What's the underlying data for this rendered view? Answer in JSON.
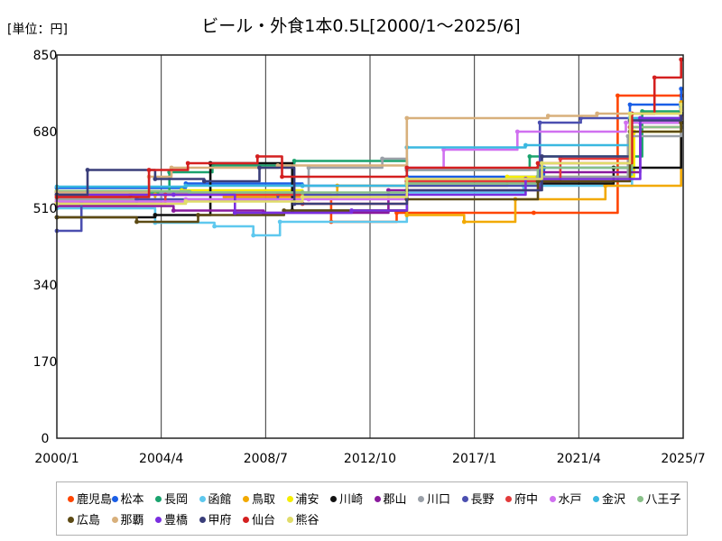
{
  "unit_label": "[単位：円]",
  "chart_data": {
    "type": "line",
    "title": "ビール・外食1本0.5L[2000/1～2025/6]",
    "xlabel": "",
    "ylabel": "",
    "x_range": [
      "2000-01",
      "2025-07"
    ],
    "ylim": [
      0,
      850
    ],
    "y_ticks": [
      "0",
      "170",
      "340",
      "510",
      "680",
      "850"
    ],
    "x_ticks": [
      {
        "label": "2000/1",
        "date": "2000-01"
      },
      {
        "label": "2004/4",
        "date": "2004-04"
      },
      {
        "label": "2008/7",
        "date": "2008-07"
      },
      {
        "label": "2012/10",
        "date": "2012-10"
      },
      {
        "label": "2017/1",
        "date": "2017-01"
      },
      {
        "label": "2021/4",
        "date": "2021-04"
      },
      {
        "label": "2025/7",
        "date": "2025-07"
      }
    ],
    "grid": "vertical",
    "legend_position": "bottom",
    "series": [
      {
        "name": "鹿児島",
        "color": "#ff4500",
        "points": [
          [
            "2000-01",
            535
          ],
          [
            "2003-01",
            540
          ],
          [
            "2007-04",
            540
          ],
          [
            "2011-03",
            480
          ],
          [
            "2013-11",
            500
          ],
          [
            "2019-06",
            500
          ],
          [
            "2022-11",
            760
          ],
          [
            "2025-06",
            760
          ]
        ]
      },
      {
        "name": "松本",
        "color": "#1a5ee6",
        "points": [
          [
            "2000-01",
            555
          ],
          [
            "2005-04",
            565
          ],
          [
            "2010-01",
            560
          ],
          [
            "2014-04",
            580
          ],
          [
            "2019-11",
            600
          ],
          [
            "2023-05",
            740
          ],
          [
            "2025-06",
            775
          ]
        ]
      },
      {
        "name": "長岡",
        "color": "#1aa36e",
        "points": [
          [
            "2000-01",
            545
          ],
          [
            "2004-08",
            590
          ],
          [
            "2006-05",
            605
          ],
          [
            "2009-09",
            615
          ],
          [
            "2014-04",
            595
          ],
          [
            "2019-04",
            625
          ],
          [
            "2023-11",
            725
          ],
          [
            "2025-06",
            735
          ]
        ]
      },
      {
        "name": "函館",
        "color": "#5ec8ee",
        "points": [
          [
            "2000-01",
            510
          ],
          [
            "2004-01",
            478
          ],
          [
            "2006-06",
            470
          ],
          [
            "2008-01",
            450
          ],
          [
            "2009-02",
            480
          ],
          [
            "2014-04",
            545
          ],
          [
            "2019-01",
            560
          ],
          [
            "2023-06",
            700
          ],
          [
            "2025-06",
            710
          ]
        ]
      },
      {
        "name": "鳥取",
        "color": "#f2a900",
        "points": [
          [
            "2000-01",
            525
          ],
          [
            "2004-01",
            540
          ],
          [
            "2006-11",
            535
          ],
          [
            "2011-06",
            560
          ],
          [
            "2014-04",
            495
          ],
          [
            "2016-08",
            480
          ],
          [
            "2018-09",
            530
          ],
          [
            "2022-05",
            560
          ],
          [
            "2025-06",
            745
          ]
        ]
      },
      {
        "name": "浦安",
        "color": "#f5ee00",
        "points": [
          [
            "2000-01",
            548
          ],
          [
            "2005-02",
            550
          ],
          [
            "2010-01",
            535
          ],
          [
            "2014-04",
            560
          ],
          [
            "2018-05",
            580
          ],
          [
            "2023-07",
            680
          ],
          [
            "2025-06",
            700
          ]
        ]
      },
      {
        "name": "川崎",
        "color": "#111111",
        "points": [
          [
            "2000-01",
            490
          ],
          [
            "2004-01",
            495
          ],
          [
            "2006-04",
            610
          ],
          [
            "2009-08",
            505
          ],
          [
            "2014-04",
            570
          ],
          [
            "2019-09",
            565
          ],
          [
            "2022-09",
            600
          ],
          [
            "2025-06",
            720
          ]
        ]
      },
      {
        "name": "郡山",
        "color": "#8a1a9e",
        "points": [
          [
            "2000-01",
            515
          ],
          [
            "2004-10",
            505
          ],
          [
            "2008-06",
            500
          ],
          [
            "2013-07",
            550
          ],
          [
            "2019-09",
            590
          ],
          [
            "2023-10",
            700
          ],
          [
            "2025-06",
            720
          ]
        ]
      },
      {
        "name": "川口",
        "color": "#9aa0a8",
        "points": [
          [
            "2000-01",
            530
          ],
          [
            "2004-04",
            545
          ],
          [
            "2010-04",
            600
          ],
          [
            "2013-04",
            620
          ],
          [
            "2014-04",
            595
          ],
          [
            "2019-08",
            580
          ],
          [
            "2023-04",
            670
          ],
          [
            "2025-06",
            690
          ]
        ]
      },
      {
        "name": "長野",
        "color": "#4b4fb0",
        "points": [
          [
            "2000-01",
            460
          ],
          [
            "2001-01",
            520
          ],
          [
            "2003-04",
            530
          ],
          [
            "2009-01",
            540
          ],
          [
            "2014-04",
            560
          ],
          [
            "2019-09",
            700
          ],
          [
            "2021-05",
            710
          ],
          [
            "2025-06",
            735
          ]
        ]
      },
      {
        "name": "府中",
        "color": "#e23b3b",
        "points": [
          [
            "2000-01",
            520
          ],
          [
            "2004-06",
            540
          ],
          [
            "2010-01",
            520
          ],
          [
            "2014-04",
            570
          ],
          [
            "2020-07",
            620
          ],
          [
            "2023-05",
            690
          ],
          [
            "2025-06",
            715
          ]
        ]
      },
      {
        "name": "水戸",
        "color": "#d070f0",
        "points": [
          [
            "2000-01",
            525
          ],
          [
            "2005-04",
            530
          ],
          [
            "2010-04",
            530
          ],
          [
            "2014-04",
            600
          ],
          [
            "2015-10",
            640
          ],
          [
            "2018-10",
            680
          ],
          [
            "2023-03",
            700
          ],
          [
            "2025-06",
            710
          ]
        ]
      },
      {
        "name": "金沢",
        "color": "#3ab8e0",
        "points": [
          [
            "2000-01",
            558
          ],
          [
            "2005-04",
            560
          ],
          [
            "2010-01",
            560
          ],
          [
            "2014-04",
            645
          ],
          [
            "2019-02",
            650
          ],
          [
            "2023-05",
            710
          ],
          [
            "2025-06",
            735
          ]
        ]
      },
      {
        "name": "八王子",
        "color": "#88c088",
        "points": [
          [
            "2000-01",
            548
          ],
          [
            "2005-06",
            545
          ],
          [
            "2010-01",
            545
          ],
          [
            "2014-04",
            565
          ],
          [
            "2019-08",
            600
          ],
          [
            "2023-06",
            690
          ],
          [
            "2025-06",
            700
          ]
        ]
      },
      {
        "name": "広島",
        "color": "#5c4a14",
        "points": [
          [
            "2000-01",
            490
          ],
          [
            "2003-04",
            480
          ],
          [
            "2005-10",
            495
          ],
          [
            "2009-04",
            505
          ],
          [
            "2014-04",
            530
          ],
          [
            "2019-08",
            570
          ],
          [
            "2023-05",
            680
          ],
          [
            "2025-06",
            700
          ]
        ]
      },
      {
        "name": "那覇",
        "color": "#d8b07c",
        "points": [
          [
            "2000-01",
            545
          ],
          [
            "2003-10",
            580
          ],
          [
            "2004-09",
            600
          ],
          [
            "2009-01",
            605
          ],
          [
            "2014-04",
            710
          ],
          [
            "2020-01",
            715
          ],
          [
            "2022-01",
            720
          ],
          [
            "2025-06",
            730
          ]
        ]
      },
      {
        "name": "豊橋",
        "color": "#7a2ee0",
        "points": [
          [
            "2000-01",
            540
          ],
          [
            "2004-10",
            540
          ],
          [
            "2007-04",
            500
          ],
          [
            "2012-01",
            505
          ],
          [
            "2014-04",
            540
          ],
          [
            "2019-02",
            575
          ],
          [
            "2023-10",
            710
          ],
          [
            "2025-06",
            720
          ]
        ]
      },
      {
        "name": "甲府",
        "color": "#3a3e7a",
        "points": [
          [
            "2000-01",
            540
          ],
          [
            "2001-04",
            595
          ],
          [
            "2004-01",
            575
          ],
          [
            "2006-01",
            570
          ],
          [
            "2008-04",
            600
          ],
          [
            "2009-09",
            520
          ],
          [
            "2014-04",
            550
          ],
          [
            "2019-10",
            625
          ],
          [
            "2023-05",
            705
          ],
          [
            "2025-06",
            720
          ]
        ]
      },
      {
        "name": "仙台",
        "color": "#d42020",
        "points": [
          [
            "2000-01",
            535
          ],
          [
            "2003-10",
            595
          ],
          [
            "2005-05",
            610
          ],
          [
            "2008-03",
            625
          ],
          [
            "2009-03",
            580
          ],
          [
            "2014-04",
            600
          ],
          [
            "2019-08",
            610
          ],
          [
            "2023-06",
            720
          ],
          [
            "2024-05",
            800
          ],
          [
            "2025-06",
            840
          ]
        ]
      },
      {
        "name": "熊谷",
        "color": "#e0dc6a",
        "points": [
          [
            "2000-01",
            520
          ],
          [
            "2005-04",
            525
          ],
          [
            "2010-01",
            535
          ],
          [
            "2014-04",
            575
          ],
          [
            "2019-10",
            610
          ],
          [
            "2023-05",
            720
          ],
          [
            "2025-06",
            740
          ]
        ]
      }
    ]
  }
}
